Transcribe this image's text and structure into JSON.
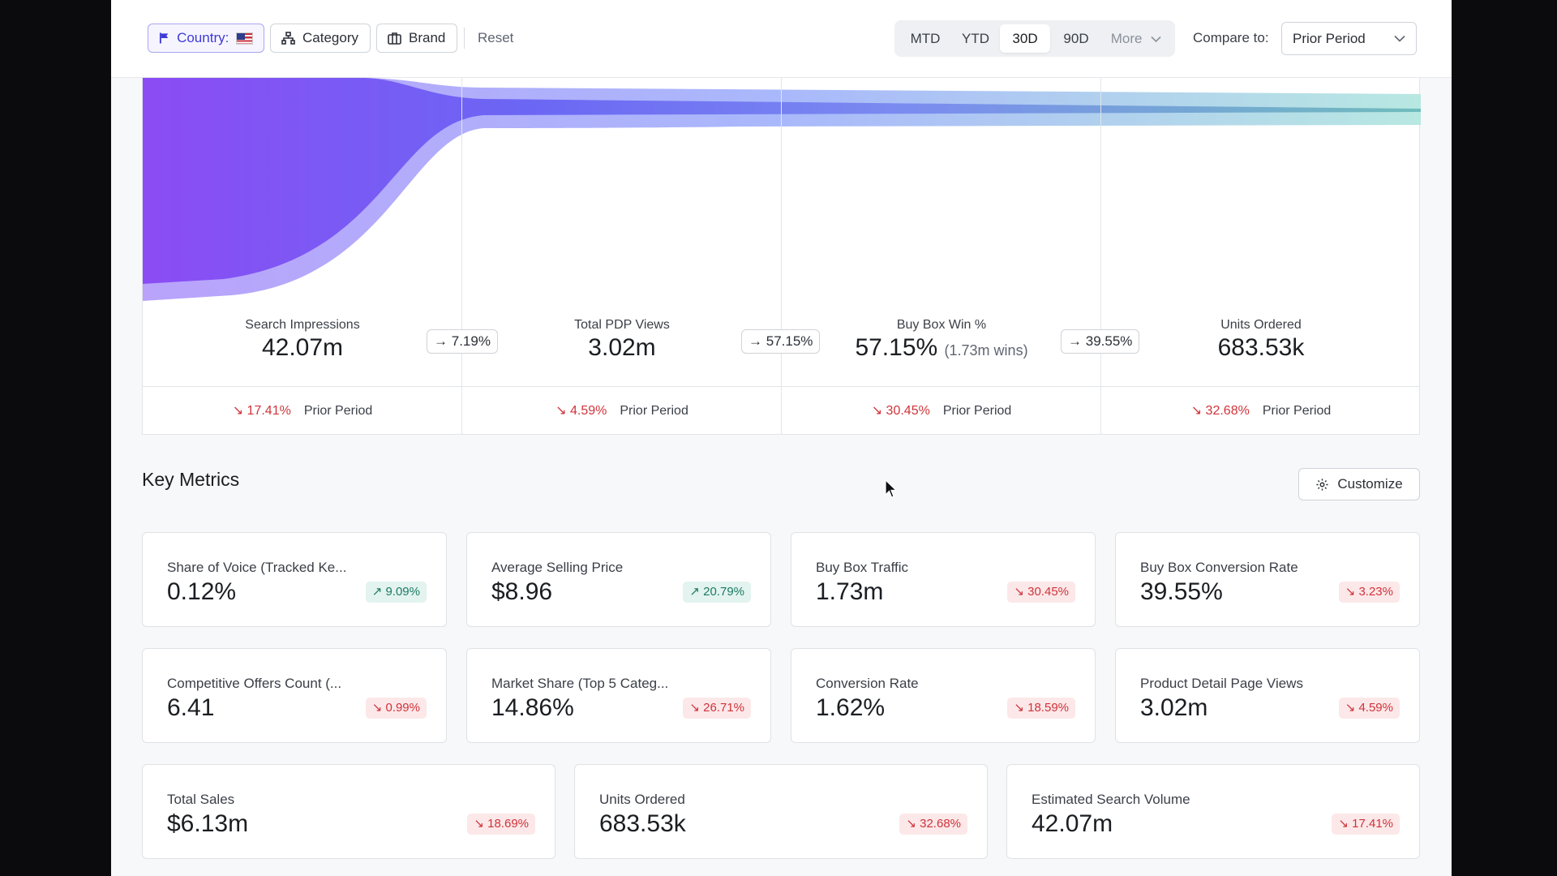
{
  "toolbar": {
    "filters": {
      "country_label": "Country:",
      "category_label": "Category",
      "brand_label": "Brand",
      "reset_label": "Reset"
    },
    "periods": [
      "MTD",
      "YTD",
      "30D",
      "90D"
    ],
    "active_period": "30D",
    "more_label": "More",
    "compare_label": "Compare to:",
    "compare_value": "Prior Period"
  },
  "funnel": {
    "stages": [
      {
        "label": "Search Impressions",
        "value": "42.07m",
        "change": "17.41%",
        "direction": "down"
      },
      {
        "label": "Total PDP Views",
        "value": "3.02m",
        "change": "4.59%",
        "direction": "down"
      },
      {
        "label": "Buy Box Win %",
        "value": "57.15%",
        "sub": "(1.73m wins)",
        "change": "30.45%",
        "direction": "down"
      },
      {
        "label": "Units Ordered",
        "value": "683.53k",
        "change": "32.68%",
        "direction": "down"
      }
    ],
    "conversions": [
      "7.19%",
      "57.15%",
      "39.55%"
    ],
    "compare_text": "Prior Period"
  },
  "key_metrics": {
    "title": "Key Metrics",
    "customize_label": "Customize",
    "cards": [
      {
        "label": "Share of Voice (Tracked Ke...",
        "value": "0.12%",
        "change": "9.09%",
        "direction": "up"
      },
      {
        "label": "Average Selling Price",
        "value": "$8.96",
        "change": "20.79%",
        "direction": "up"
      },
      {
        "label": "Buy Box Traffic",
        "value": "1.73m",
        "change": "30.45%",
        "direction": "down"
      },
      {
        "label": "Buy Box Conversion Rate",
        "value": "39.55%",
        "change": "3.23%",
        "direction": "down"
      },
      {
        "label": "Competitive Offers Count (...",
        "value": "6.41",
        "change": "0.99%",
        "direction": "down"
      },
      {
        "label": "Market Share (Top 5 Categ...",
        "value": "14.86%",
        "change": "26.71%",
        "direction": "down"
      },
      {
        "label": "Conversion Rate",
        "value": "1.62%",
        "change": "18.59%",
        "direction": "down"
      },
      {
        "label": "Product Detail Page Views",
        "value": "3.02m",
        "change": "4.59%",
        "direction": "down"
      },
      {
        "label": "Total Sales",
        "value": "$6.13m",
        "change": "18.69%",
        "direction": "down"
      },
      {
        "label": "Units Ordered",
        "value": "683.53k",
        "change": "32.68%",
        "direction": "down"
      },
      {
        "label": "Estimated Search Volume",
        "value": "42.07m",
        "change": "17.41%",
        "direction": "down"
      }
    ]
  },
  "colors": {
    "accent": "#3e3ad6",
    "funnel_start": "#8e4df5",
    "funnel_end": "#8fd6cf",
    "positive": "#1d7a64",
    "negative": "#cf333a"
  }
}
